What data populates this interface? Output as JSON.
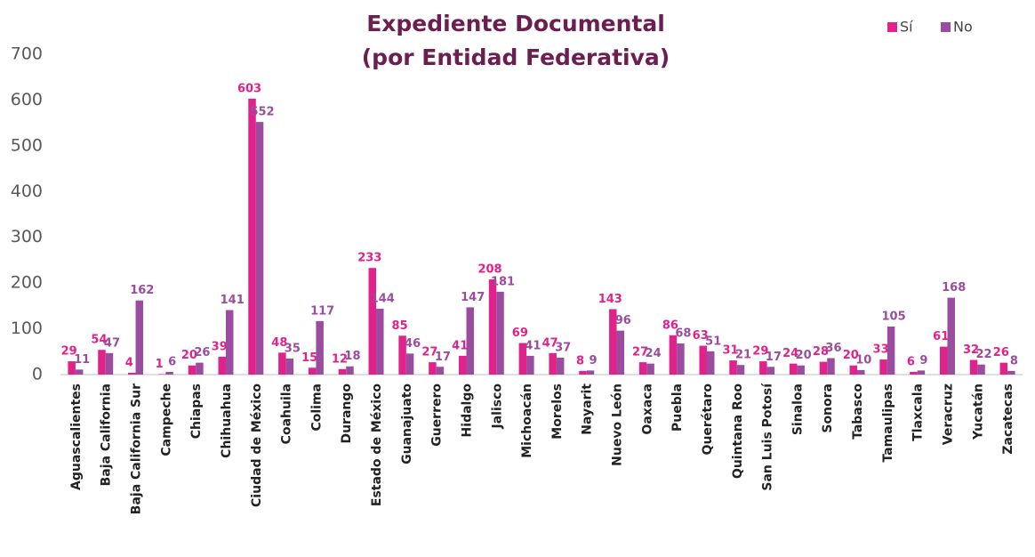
{
  "chart_data": {
    "type": "bar",
    "title": "Expediente Documental",
    "subtitle": "(por Entidad Federativa)",
    "categories": [
      "Aguascalientes",
      "Baja California",
      "Baja California Sur",
      "Campeche",
      "Chiapas",
      "Chihuahua",
      "Ciudad de México",
      "Coahuila",
      "Colima",
      "Durango",
      "Estado de México",
      "Guanajuato",
      "Guerrero",
      "Hidalgo",
      "Jalisco",
      "Michoacán",
      "Morelos",
      "Nayarit",
      "Nuevo León",
      "Oaxaca",
      "Puebla",
      "Querétaro",
      "Quintana Roo",
      "San Luis Potosí",
      "Sinaloa",
      "Sonora",
      "Tabasco",
      "Tamaulipas",
      "Tlaxcala",
      "Veracruz",
      "Yucatán",
      "Zacatecas"
    ],
    "series": [
      {
        "name": "Sí",
        "color": "#e0228a",
        "values": [
          29,
          54,
          4,
          1,
          20,
          39,
          603,
          48,
          15,
          12,
          233,
          85,
          27,
          41,
          208,
          69,
          47,
          8,
          143,
          27,
          86,
          63,
          31,
          29,
          24,
          28,
          20,
          33,
          6,
          61,
          32,
          26
        ]
      },
      {
        "name": "No",
        "color": "#9a4c9e",
        "values": [
          11,
          47,
          162,
          6,
          26,
          141,
          552,
          35,
          117,
          18,
          144,
          46,
          17,
          147,
          181,
          41,
          37,
          9,
          96,
          24,
          68,
          51,
          21,
          17,
          20,
          36,
          10,
          105,
          9,
          168,
          22,
          8
        ]
      }
    ],
    "ylim": [
      0,
      700
    ],
    "yticks": [
      0,
      100,
      200,
      300,
      400,
      500,
      600,
      700
    ],
    "legend": "top-right"
  }
}
